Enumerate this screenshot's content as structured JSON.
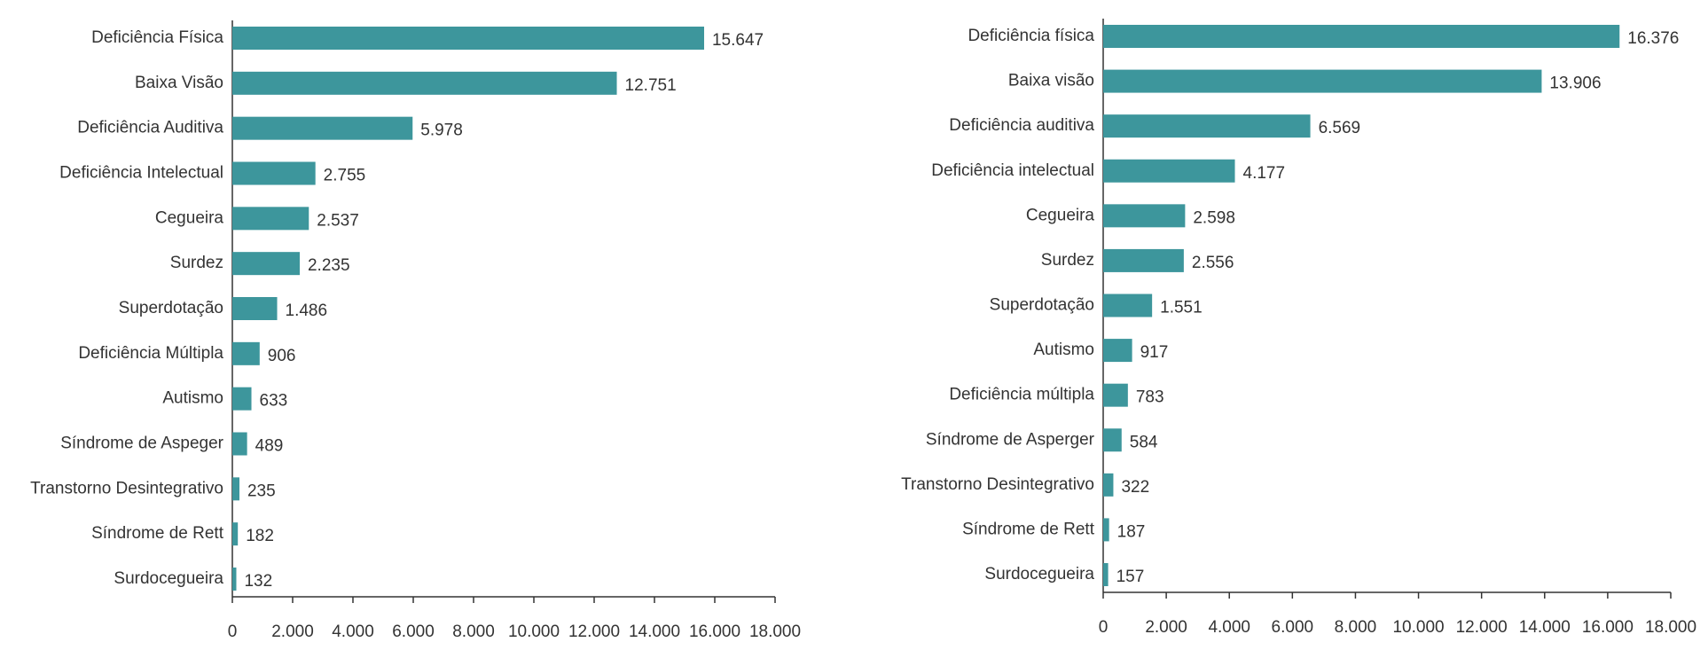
{
  "chart_data": [
    {
      "type": "barh",
      "categories": [
        "Deficiência Física",
        "Baixa Visão",
        "Deficiência Auditiva",
        "Deficiência Intelectual",
        "Cegueira",
        "Surdez",
        "Superdotação",
        "Deficiência Múltipla",
        "Autismo",
        "Síndrome de Aspeger",
        "Transtorno Desintegrativo",
        "Síndrome de Rett",
        "Surdocegueira"
      ],
      "values": [
        15647,
        12751,
        5978,
        2755,
        2537,
        2235,
        1486,
        906,
        633,
        489,
        235,
        182,
        132
      ],
      "value_labels": [
        "15.647",
        "12.751",
        "5.978",
        "2.755",
        "2.537",
        "2.235",
        "1.486",
        "906",
        "633",
        "489",
        "235",
        "182",
        "132"
      ],
      "color": "#3d969c",
      "xlim": [
        0,
        18000
      ],
      "xticks": [
        0,
        {
          "value": 2000,
          "label": "2.000"
        },
        {
          "value": 4000,
          "label": "4.000"
        },
        {
          "value": 6000,
          "label": "6.000"
        },
        {
          "value": 8000,
          "label": "8.000"
        },
        {
          "value": 10000,
          "label": "10.000"
        },
        {
          "value": 12000,
          "label": "12.000"
        },
        {
          "value": 14000,
          "label": "14.000"
        },
        {
          "value": 16000,
          "label": "16.000"
        },
        {
          "value": 18000,
          "label": "18.000"
        }
      ]
    },
    {
      "type": "barh",
      "categories": [
        "Deficiência física",
        "Baixa visão",
        "Deficiência auditiva",
        "Deficiência intelectual",
        "Cegueira",
        "Surdez",
        "Superdotação",
        "Autismo",
        "Deficiência múltipla",
        "Síndrome de Asperger",
        "Transtorno Desintegrativo",
        "Síndrome de Rett",
        "Surdocegueira"
      ],
      "values": [
        16376,
        13906,
        6569,
        4177,
        2598,
        2556,
        1551,
        917,
        783,
        584,
        322,
        187,
        157
      ],
      "value_labels": [
        "16.376",
        "13.906",
        "6.569",
        "4.177",
        "2.598",
        "2.556",
        "1.551",
        "917",
        "783",
        "584",
        "322",
        "187",
        "157"
      ],
      "color": "#3d969c",
      "xlim": [
        0,
        18000
      ],
      "xticks": [
        0,
        {
          "value": 2000,
          "label": "2.000"
        },
        {
          "value": 4000,
          "label": "4.000"
        },
        {
          "value": 6000,
          "label": "6.000"
        },
        {
          "value": 8000,
          "label": "8.000"
        },
        {
          "value": 10000,
          "label": "10.000"
        },
        {
          "value": 12000,
          "label": "12.000"
        },
        {
          "value": 14000,
          "label": "14.000"
        },
        {
          "value": 16000,
          "label": "16.000"
        },
        {
          "value": 18000,
          "label": "18.000"
        }
      ]
    }
  ]
}
